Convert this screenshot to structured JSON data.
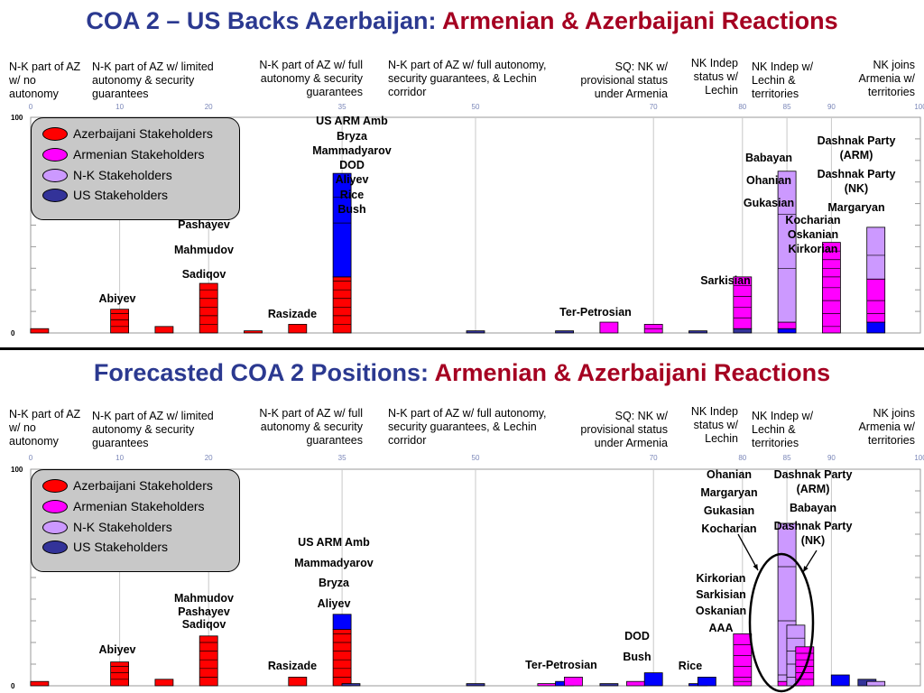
{
  "titles": [
    {
      "prefix": "COA 2 – US Backs Azerbaijan: ",
      "suffix": "Armenian & Azerbaijani Reactions"
    },
    {
      "prefix": "Forecasted COA 2 Positions: ",
      "suffix": "Armenian & Azerbaijani Reactions"
    }
  ],
  "position_headers": [
    "N-K part of AZ w/ no autonomy",
    "N-K part of AZ w/ limited autonomy & security guarantees",
    "N-K part of AZ w/ full autonomy & security guarantees",
    "N-K part of AZ w/ full autonomy, security guarantees, & Lechin corridor",
    "SQ: NK w/ provisional status under Armenia",
    "NK Indep status w/ Lechin",
    "NK Indep w/ Lechin & territories",
    "NK joins Armenia w/ territories"
  ],
  "legend": [
    {
      "label": "Azerbaijani Stakeholders",
      "color": "#ff0000"
    },
    {
      "label": "Armenian Stakeholders",
      "color": "#ff00ff"
    },
    {
      "label": "N-K Stakeholders",
      "color": "#cc99ff"
    },
    {
      "label": "US Stakeholders",
      "color": "#333399"
    }
  ],
  "chart_data": [
    {
      "type": "bar",
      "title": "COA 2 – US Backs Azerbaijan: Armenian & Azerbaijani Reactions",
      "x_ticks": [
        0,
        10,
        20,
        35,
        50,
        70,
        80,
        85,
        90,
        100
      ],
      "y_ticks": [
        0,
        100
      ],
      "xlim": [
        0,
        100
      ],
      "ylim": [
        0,
        100
      ],
      "bars": [
        {
          "x": 1,
          "color": "#ff0000",
          "segments": [
            2
          ]
        },
        {
          "x": 10,
          "color": "#ff0000",
          "segments": [
            3,
            3,
            3,
            2
          ]
        },
        {
          "x": 15,
          "color": "#ff0000",
          "segments": [
            3
          ]
        },
        {
          "x": 20,
          "color": "#ff0000",
          "segments": [
            4,
            4,
            4,
            4,
            4,
            3
          ]
        },
        {
          "x": 25,
          "color": "#ff0000",
          "segments": [
            1
          ]
        },
        {
          "x": 30,
          "color": "#ff0000",
          "segments": [
            4
          ]
        },
        {
          "x": 35,
          "color": "#ff0000",
          "segments": [
            4,
            4,
            4,
            4,
            4,
            4,
            2
          ]
        },
        {
          "x": 35,
          "color": "#0000ff",
          "segments": [
            25,
            12,
            11
          ]
        },
        {
          "x": 50,
          "color": "#333399",
          "segments": [
            1
          ]
        },
        {
          "x": 60,
          "color": "#333399",
          "segments": [
            1
          ]
        },
        {
          "x": 65,
          "color": "#ff00ff",
          "segments": [
            5
          ]
        },
        {
          "x": 70,
          "color": "#ff00ff",
          "segments": [
            2,
            2
          ]
        },
        {
          "x": 75,
          "color": "#333399",
          "segments": [
            1
          ]
        },
        {
          "x": 80,
          "color": "#333399",
          "segments": [
            2
          ]
        },
        {
          "x": 80,
          "color": "#ff00ff",
          "segments": [
            5,
            5,
            5,
            5,
            4
          ]
        },
        {
          "x": 85,
          "color": "#0000ff",
          "segments": [
            2
          ]
        },
        {
          "x": 85,
          "color": "#ff00ff",
          "segments": [
            3
          ]
        },
        {
          "x": 85,
          "color": "#cc99ff",
          "segments": [
            25,
            25,
            20
          ]
        },
        {
          "x": 90,
          "color": "#ff00ff",
          "segments": [
            3,
            6,
            6,
            6,
            5,
            4,
            4,
            4,
            4
          ]
        },
        {
          "x": 95,
          "color": "#0000ff",
          "segments": [
            5
          ]
        },
        {
          "x": 95,
          "color": "#ff00ff",
          "segments": [
            4,
            6,
            10
          ]
        },
        {
          "x": 95,
          "color": "#cc99ff",
          "segments": [
            11,
            13
          ]
        }
      ],
      "labels": [
        {
          "text": "Abiyev"
        },
        {
          "text": "Pashayev"
        },
        {
          "text": "Mahmudov"
        },
        {
          "text": "Sadiqov"
        },
        {
          "text": "Rasizade"
        },
        {
          "text": "US ARM Amb"
        },
        {
          "text": "Bryza"
        },
        {
          "text": "Mammadyarov"
        },
        {
          "text": "DOD"
        },
        {
          "text": "Aliyev"
        },
        {
          "text": "Rice"
        },
        {
          "text": "Bush"
        },
        {
          "text": "Ter-Petrosian"
        },
        {
          "text": "Sarkisian"
        },
        {
          "text": "Babayan"
        },
        {
          "text": "Ohanian"
        },
        {
          "text": "Gukasian"
        },
        {
          "text": "Kocharian"
        },
        {
          "text": "Oskanian"
        },
        {
          "text": "Kirkorian"
        },
        {
          "text": "Dashnak Party (ARM)"
        },
        {
          "text": "Dashnak Party (NK)"
        },
        {
          "text": "Margaryan"
        }
      ]
    },
    {
      "type": "bar",
      "title": "Forecasted COA 2 Positions: Armenian & Azerbaijani Reactions",
      "x_ticks": [
        0,
        10,
        20,
        35,
        50,
        70,
        80,
        85,
        90,
        100
      ],
      "y_ticks": [
        0,
        100
      ],
      "xlim": [
        0,
        100
      ],
      "ylim": [
        0,
        100
      ],
      "bars": [
        {
          "x": 1,
          "color": "#ff0000",
          "segments": [
            2
          ]
        },
        {
          "x": 10,
          "color": "#ff0000",
          "segments": [
            3,
            3,
            3,
            2
          ]
        },
        {
          "x": 15,
          "color": "#ff0000",
          "segments": [
            3
          ]
        },
        {
          "x": 20,
          "color": "#ff0000",
          "segments": [
            4,
            4,
            4,
            4,
            4,
            3
          ]
        },
        {
          "x": 30,
          "color": "#ff0000",
          "segments": [
            4
          ]
        },
        {
          "x": 35,
          "color": "#ff0000",
          "segments": [
            4,
            4,
            4,
            4,
            4,
            4,
            2
          ]
        },
        {
          "x": 35,
          "color": "#0000ff",
          "segments": [
            7
          ]
        },
        {
          "x": 36,
          "color": "#333399",
          "segments": [
            1
          ]
        },
        {
          "x": 50,
          "color": "#333399",
          "segments": [
            1
          ]
        },
        {
          "x": 58,
          "color": "#ff00ff",
          "segments": [
            1
          ]
        },
        {
          "x": 60,
          "color": "#0000ff",
          "segments": [
            2
          ]
        },
        {
          "x": 61,
          "color": "#ff00ff",
          "segments": [
            4
          ]
        },
        {
          "x": 65,
          "color": "#333399",
          "segments": [
            1
          ]
        },
        {
          "x": 68,
          "color": "#ff00ff",
          "segments": [
            2
          ]
        },
        {
          "x": 70,
          "color": "#0000ff",
          "segments": [
            6
          ]
        },
        {
          "x": 75,
          "color": "#0000ff",
          "segments": [
            1
          ]
        },
        {
          "x": 76,
          "color": "#0000ff",
          "segments": [
            4
          ]
        },
        {
          "x": 80,
          "color": "#ff00ff",
          "segments": [
            2,
            2,
            5,
            5,
            5,
            5
          ]
        },
        {
          "x": 85,
          "color": "#ff00ff",
          "segments": [
            2
          ]
        },
        {
          "x": 85,
          "color": "#cc99ff",
          "segments": [
            3,
            25,
            25,
            20
          ]
        },
        {
          "x": 86,
          "color": "#cc99ff",
          "segments": [
            4,
            6,
            6,
            6,
            6
          ]
        },
        {
          "x": 87,
          "color": "#ff00ff",
          "segments": [
            3,
            3,
            3,
            3,
            3,
            3
          ]
        },
        {
          "x": 91,
          "color": "#0000ff",
          "segments": [
            5
          ]
        },
        {
          "x": 94,
          "color": "#333399",
          "segments": [
            3
          ]
        },
        {
          "x": 95,
          "color": "#cc99ff",
          "segments": [
            2
          ]
        }
      ],
      "labels": [
        {
          "text": "Abiyev"
        },
        {
          "text": "Mahmudov"
        },
        {
          "text": "Pashayev"
        },
        {
          "text": "Sadiqov"
        },
        {
          "text": "Rasizade"
        },
        {
          "text": "US ARM Amb"
        },
        {
          "text": "Mammadyarov"
        },
        {
          "text": "Bryza"
        },
        {
          "text": "Aliyev"
        },
        {
          "text": "Ter-Petrosian"
        },
        {
          "text": "DOD"
        },
        {
          "text": "Bush"
        },
        {
          "text": "Rice"
        },
        {
          "text": "Ohanian"
        },
        {
          "text": "Margaryan"
        },
        {
          "text": "Gukasian"
        },
        {
          "text": "Kocharian"
        },
        {
          "text": "Dashnak Party (ARM)"
        },
        {
          "text": "Babayan"
        },
        {
          "text": "Dashnak Party (NK)"
        },
        {
          "text": "Kirkorian"
        },
        {
          "text": "Sarkisian"
        },
        {
          "text": "Oskanian"
        },
        {
          "text": "AAA"
        }
      ]
    }
  ]
}
